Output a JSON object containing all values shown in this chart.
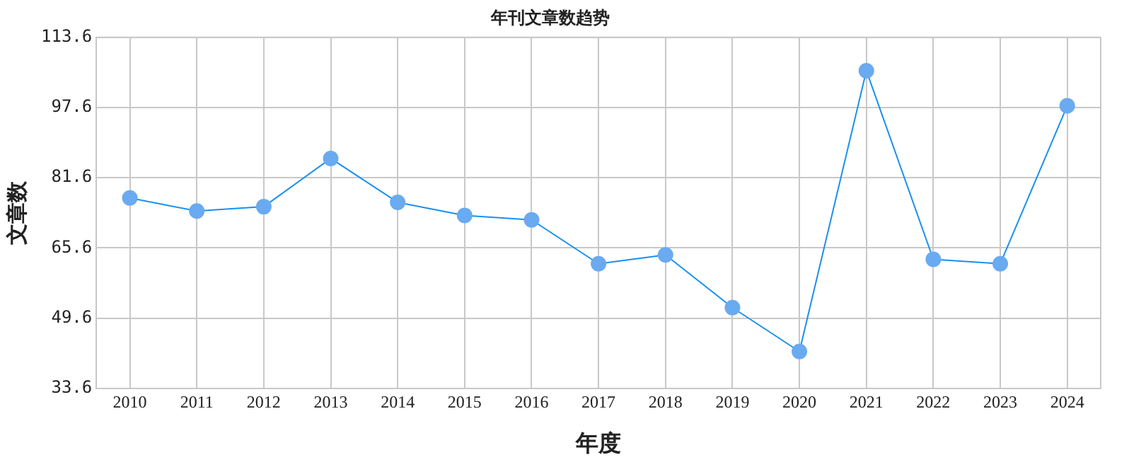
{
  "chart_data": {
    "type": "line",
    "title": "年刊文章数趋势",
    "xlabel": "年度",
    "ylabel": "文章数",
    "categories": [
      "2010",
      "2011",
      "2012",
      "2013",
      "2014",
      "2015",
      "2016",
      "2017",
      "2018",
      "2019",
      "2020",
      "2021",
      "2022",
      "2023",
      "2024"
    ],
    "series": [
      {
        "color": "#1a90f0",
        "values": [
          77,
          74,
          75,
          86,
          76,
          73,
          72,
          62,
          64,
          52,
          42,
          106,
          63,
          62,
          98
        ]
      }
    ],
    "ylim": [
      33.6,
      113.6
    ],
    "yticks": [
      {
        "value": 33.6,
        "label": "33.6"
      },
      {
        "value": 49.6,
        "label": "49.6"
      },
      {
        "value": 65.6,
        "label": "65.6"
      },
      {
        "value": 81.6,
        "label": "81.6"
      },
      {
        "value": 97.6,
        "label": "97.6"
      },
      {
        "value": 113.6,
        "label": "113.6"
      }
    ],
    "grid": true,
    "legend": false,
    "marker": "circle",
    "line_style": "solid"
  }
}
